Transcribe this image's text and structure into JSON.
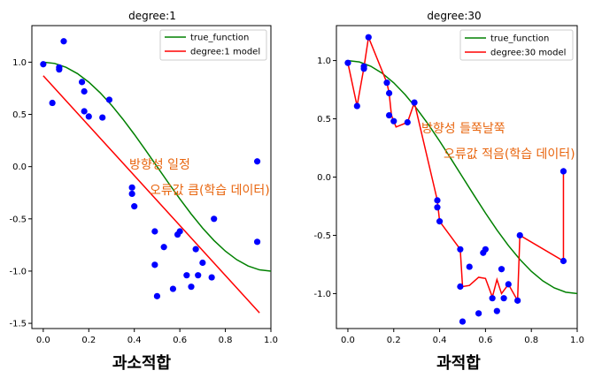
{
  "colors": {
    "true_function": "#008000",
    "model": "#ff0000",
    "points": "#0000ff",
    "annotation": "#e8650e"
  },
  "chart_data": [
    {
      "type": "line",
      "title": "degree:1",
      "xlim": [
        -0.05,
        1.0
      ],
      "ylim": [
        -1.55,
        1.35
      ],
      "xticks": [
        "0.0",
        "0.2",
        "0.4",
        "0.6",
        "0.8",
        "1.0"
      ],
      "xtick_values": [
        0.0,
        0.2,
        0.4,
        0.6,
        0.8,
        1.0
      ],
      "yticks": [
        "1.0",
        "0.5",
        "0.0",
        "-0.5",
        "-1.0",
        "-1.5"
      ],
      "ytick_values": [
        1.0,
        0.5,
        0.0,
        -0.5,
        -1.0,
        -1.5
      ],
      "legend": [
        "true_function",
        "degree:1 model"
      ],
      "legend_position": "top-right",
      "annotations": [
        "방향성 일정",
        "오류값 큼(학습 데이터)"
      ],
      "caption": "과소적합",
      "scatter": {
        "x": [
          0.0,
          0.04,
          0.07,
          0.07,
          0.09,
          0.17,
          0.18,
          0.18,
          0.2,
          0.26,
          0.29,
          0.39,
          0.39,
          0.4,
          0.49,
          0.49,
          0.5,
          0.53,
          0.57,
          0.59,
          0.6,
          0.63,
          0.65,
          0.67,
          0.68,
          0.7,
          0.74,
          0.75,
          0.94,
          0.94
        ],
        "y": [
          0.98,
          0.61,
          0.95,
          0.93,
          1.2,
          0.81,
          0.72,
          0.53,
          0.48,
          0.47,
          0.64,
          -0.2,
          -0.26,
          -0.38,
          -0.62,
          -0.94,
          -1.24,
          -0.77,
          -1.17,
          -0.65,
          -0.62,
          -1.04,
          -1.15,
          -0.79,
          -1.04,
          -0.92,
          -1.06,
          -0.5,
          0.05,
          -0.72
        ]
      },
      "true_function": {
        "x": [
          0.0,
          0.05,
          0.1,
          0.15,
          0.2,
          0.25,
          0.3,
          0.35,
          0.4,
          0.45,
          0.5,
          0.55,
          0.6,
          0.65,
          0.7,
          0.75,
          0.8,
          0.85,
          0.9,
          0.95,
          1.0
        ],
        "y": [
          1.0,
          0.988,
          0.951,
          0.891,
          0.809,
          0.707,
          0.588,
          0.454,
          0.309,
          0.156,
          0.0,
          -0.156,
          -0.309,
          -0.454,
          -0.588,
          -0.707,
          -0.809,
          -0.891,
          -0.951,
          -0.988,
          -1.0
        ]
      },
      "model_line": {
        "x": [
          0.0,
          0.95
        ],
        "y": [
          0.87,
          -1.4
        ]
      }
    },
    {
      "type": "line",
      "title": "degree:30",
      "xlim": [
        -0.05,
        1.0
      ],
      "ylim": [
        -1.3,
        1.3
      ],
      "xticks": [
        "0.0",
        "0.2",
        "0.4",
        "0.6",
        "0.8",
        "1.0"
      ],
      "xtick_values": [
        0.0,
        0.2,
        0.4,
        0.6,
        0.8,
        1.0
      ],
      "yticks": [
        "1.0",
        "0.5",
        "0.0",
        "-0.5",
        "-1.0"
      ],
      "ytick_values": [
        1.0,
        0.5,
        0.0,
        -0.5,
        -1.0
      ],
      "legend": [
        "true_function",
        "degree:30 model"
      ],
      "legend_position": "top-right",
      "annotations": [
        "방향성 들쭉날쭉",
        "오류값 적음(학습 데이터)"
      ],
      "caption": "과적합",
      "scatter": {
        "x": [
          0.0,
          0.04,
          0.07,
          0.07,
          0.09,
          0.17,
          0.18,
          0.18,
          0.2,
          0.26,
          0.29,
          0.39,
          0.39,
          0.4,
          0.49,
          0.49,
          0.5,
          0.53,
          0.57,
          0.59,
          0.6,
          0.63,
          0.65,
          0.67,
          0.68,
          0.7,
          0.74,
          0.75,
          0.94,
          0.94
        ],
        "y": [
          0.98,
          0.61,
          0.95,
          0.93,
          1.2,
          0.81,
          0.72,
          0.53,
          0.48,
          0.47,
          0.64,
          -0.2,
          -0.26,
          -0.38,
          -0.62,
          -0.94,
          -1.24,
          -0.77,
          -1.17,
          -0.65,
          -0.62,
          -1.04,
          -1.15,
          -0.79,
          -1.04,
          -0.92,
          -1.06,
          -0.5,
          0.05,
          -0.72
        ]
      },
      "true_function": {
        "x": [
          0.0,
          0.05,
          0.1,
          0.15,
          0.2,
          0.25,
          0.3,
          0.35,
          0.4,
          0.45,
          0.5,
          0.55,
          0.6,
          0.65,
          0.7,
          0.75,
          0.8,
          0.85,
          0.9,
          0.95,
          1.0
        ],
        "y": [
          1.0,
          0.988,
          0.951,
          0.891,
          0.809,
          0.707,
          0.588,
          0.454,
          0.309,
          0.156,
          0.0,
          -0.156,
          -0.309,
          -0.454,
          -0.588,
          -0.707,
          -0.809,
          -0.891,
          -0.951,
          -0.988,
          -1.0
        ]
      },
      "model_line": {
        "x": [
          0.0,
          0.04,
          0.07,
          0.09,
          0.17,
          0.18,
          0.19,
          0.21,
          0.26,
          0.29,
          0.39,
          0.4,
          0.49,
          0.5,
          0.53,
          0.57,
          0.6,
          0.63,
          0.65,
          0.67,
          0.7,
          0.74,
          0.75,
          0.94,
          0.94
        ],
        "y": [
          0.98,
          0.61,
          0.94,
          1.2,
          0.81,
          0.72,
          0.53,
          0.43,
          0.47,
          0.64,
          -0.2,
          -0.38,
          -0.62,
          -0.94,
          -0.93,
          -0.86,
          -0.87,
          -1.03,
          -0.88,
          -1.0,
          -0.92,
          -1.06,
          -0.5,
          -0.72,
          0.05
        ]
      }
    }
  ]
}
